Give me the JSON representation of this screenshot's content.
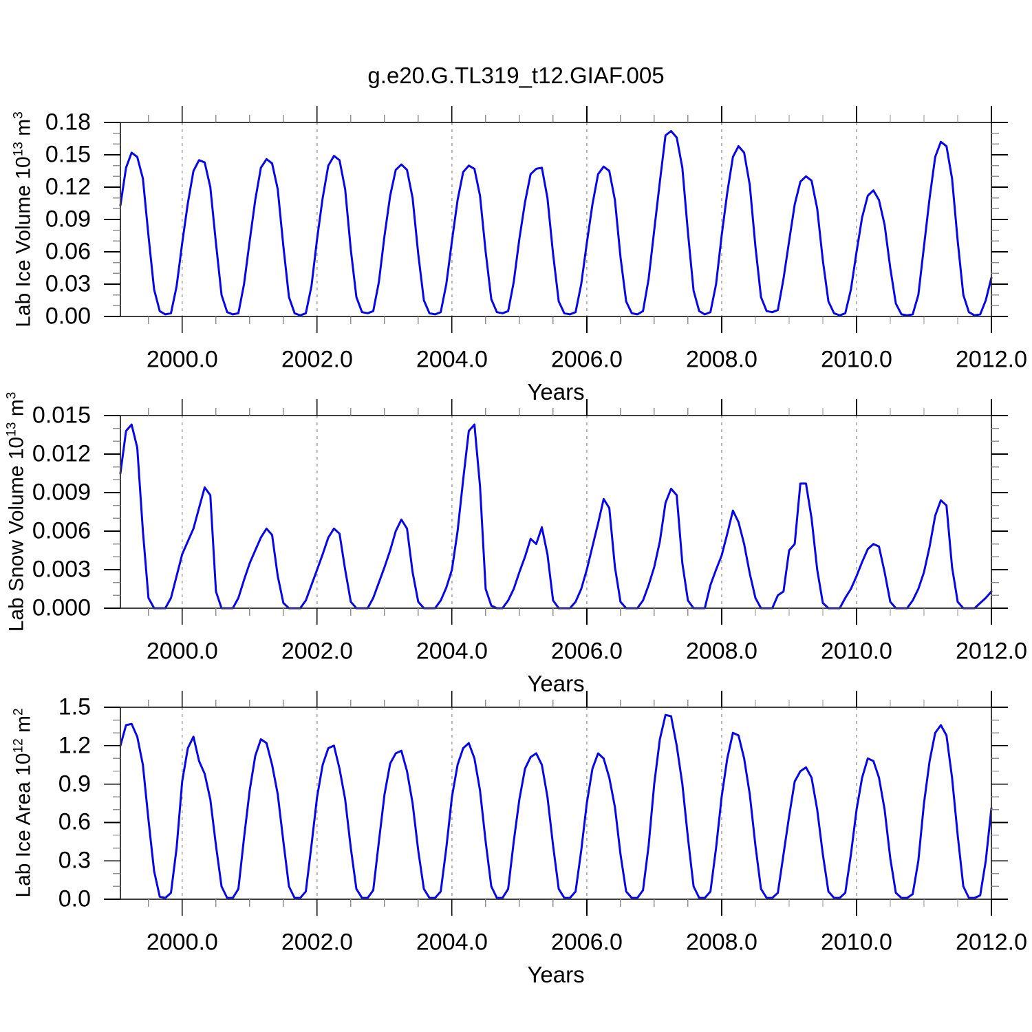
{
  "figure": {
    "title": "g.e20.G.TL319_t12.GIAF.005",
    "background": "#ffffff"
  },
  "style": {
    "line_color": "#0606ee",
    "frame_color": "#404040",
    "major_tick_color": "#000000",
    "minor_tick_color": "#909090",
    "grid_color": "#888888",
    "text_color": "#000000"
  },
  "x_axis": {
    "label": "Years",
    "min": 1999.0833,
    "max": 2012.0,
    "major_tick_values": [
      2000.0,
      2002.0,
      2004.0,
      2006.0,
      2008.0,
      2010.0,
      2012.0
    ],
    "major_tick_labels": [
      "2000.0",
      "2002.0",
      "2004.0",
      "2006.0",
      "2008.0",
      "2010.0",
      "2012.0"
    ],
    "minor_tick_step": 0.5,
    "grid_values": [
      2000.0,
      2002.0,
      2004.0,
      2006.0,
      2008.0,
      2010.0
    ]
  },
  "chart_data": [
    {
      "type": "line",
      "name": "Lab Ice Volume",
      "ylabel": "Lab Ice Volume 10¹³ m³",
      "ylabel_parts": [
        [
          "Lab Ice Volume 10",
          false
        ],
        [
          "13",
          true
        ],
        [
          " m",
          false
        ],
        [
          "3",
          true
        ]
      ],
      "xlabel": "Years",
      "xlim": [
        1999.0833,
        2012.0
      ],
      "ylim": [
        0.0,
        0.18
      ],
      "ytick_values": [
        0.0,
        0.03,
        0.06,
        0.09,
        0.12,
        0.15,
        0.18
      ],
      "ytick_labels": [
        "0.00",
        "0.03",
        "0.06",
        "0.09",
        "0.12",
        "0.15",
        "0.18"
      ],
      "y_minor_step": 0.01,
      "x_start": 1999.0833,
      "x_step": 0.0833333,
      "values": [
        0.103,
        0.138,
        0.152,
        0.148,
        0.128,
        0.075,
        0.025,
        0.005,
        0.002,
        0.003,
        0.028,
        0.068,
        0.105,
        0.135,
        0.145,
        0.143,
        0.12,
        0.068,
        0.02,
        0.004,
        0.002,
        0.003,
        0.03,
        0.07,
        0.108,
        0.138,
        0.146,
        0.142,
        0.118,
        0.065,
        0.018,
        0.003,
        0.001,
        0.003,
        0.028,
        0.072,
        0.11,
        0.14,
        0.149,
        0.145,
        0.118,
        0.062,
        0.018,
        0.004,
        0.003,
        0.005,
        0.032,
        0.075,
        0.112,
        0.136,
        0.141,
        0.136,
        0.11,
        0.058,
        0.015,
        0.003,
        0.002,
        0.004,
        0.03,
        0.07,
        0.108,
        0.134,
        0.14,
        0.137,
        0.112,
        0.06,
        0.016,
        0.004,
        0.003,
        0.005,
        0.032,
        0.072,
        0.106,
        0.132,
        0.137,
        0.138,
        0.11,
        0.058,
        0.014,
        0.003,
        0.002,
        0.004,
        0.03,
        0.068,
        0.104,
        0.132,
        0.139,
        0.135,
        0.108,
        0.055,
        0.014,
        0.003,
        0.002,
        0.005,
        0.035,
        0.08,
        0.125,
        0.168,
        0.172,
        0.166,
        0.138,
        0.078,
        0.024,
        0.005,
        0.002,
        0.004,
        0.03,
        0.075,
        0.115,
        0.148,
        0.158,
        0.152,
        0.122,
        0.065,
        0.018,
        0.005,
        0.004,
        0.006,
        0.035,
        0.07,
        0.104,
        0.125,
        0.13,
        0.126,
        0.1,
        0.052,
        0.014,
        0.003,
        0.001,
        0.003,
        0.025,
        0.06,
        0.092,
        0.112,
        0.117,
        0.108,
        0.085,
        0.045,
        0.012,
        0.002,
        0.001,
        0.002,
        0.02,
        0.065,
        0.11,
        0.148,
        0.162,
        0.158,
        0.128,
        0.07,
        0.02,
        0.004,
        0.001,
        0.002,
        0.015,
        0.036
      ]
    },
    {
      "type": "line",
      "name": "Lab Snow Volume",
      "ylabel": "Lab Snow Volume 10¹³ m³",
      "ylabel_parts": [
        [
          "Lab Snow Volume 10",
          false
        ],
        [
          "13",
          true
        ],
        [
          " m",
          false
        ],
        [
          "3",
          true
        ]
      ],
      "xlabel": "Years",
      "xlim": [
        1999.0833,
        2012.0
      ],
      "ylim": [
        0.0,
        0.015
      ],
      "ytick_values": [
        0.0,
        0.003,
        0.006,
        0.009,
        0.012,
        0.015
      ],
      "ytick_labels": [
        "0.000",
        "0.003",
        "0.006",
        "0.009",
        "0.012",
        "0.015"
      ],
      "y_minor_step": 0.001,
      "x_start": 1999.0833,
      "x_step": 0.0833333,
      "values": [
        0.0105,
        0.0138,
        0.0143,
        0.0125,
        0.006,
        0.0008,
        0.0,
        0.0,
        0.0,
        0.0008,
        0.0025,
        0.0042,
        0.0052,
        0.0062,
        0.0078,
        0.0094,
        0.0088,
        0.0013,
        0.0,
        0.0,
        0.0,
        0.0008,
        0.0022,
        0.0035,
        0.0045,
        0.0055,
        0.0062,
        0.0057,
        0.0025,
        0.0004,
        0.0,
        0.0,
        0.0,
        0.0006,
        0.0018,
        0.003,
        0.0042,
        0.0055,
        0.0062,
        0.0058,
        0.003,
        0.0005,
        0.0,
        0.0,
        0.0,
        0.0008,
        0.002,
        0.0032,
        0.0045,
        0.006,
        0.0069,
        0.0062,
        0.0028,
        0.0005,
        0.0,
        0.0,
        0.0,
        0.0006,
        0.0016,
        0.003,
        0.006,
        0.01,
        0.0138,
        0.0143,
        0.0095,
        0.0015,
        0.0002,
        0.0,
        0.0,
        0.0006,
        0.0015,
        0.0028,
        0.004,
        0.0054,
        0.005,
        0.0063,
        0.0042,
        0.0006,
        0.0,
        0.0,
        0.0,
        0.0005,
        0.0015,
        0.003,
        0.0048,
        0.0066,
        0.0085,
        0.0078,
        0.0032,
        0.0005,
        0.0,
        0.0,
        0.0,
        0.0006,
        0.0018,
        0.0032,
        0.0052,
        0.0082,
        0.0093,
        0.0088,
        0.0035,
        0.0006,
        0.0,
        0.0,
        0.0,
        0.0018,
        0.003,
        0.0041,
        0.0058,
        0.0076,
        0.0067,
        0.005,
        0.0027,
        0.0008,
        0.0,
        0.0,
        0.0,
        0.001,
        0.0013,
        0.0045,
        0.005,
        0.0097,
        0.0097,
        0.007,
        0.003,
        0.0004,
        0.0,
        0.0,
        0.0,
        0.0008,
        0.0015,
        0.0025,
        0.0036,
        0.0046,
        0.005,
        0.0048,
        0.0028,
        0.0005,
        0.0,
        0.0,
        0.0,
        0.0006,
        0.0015,
        0.0028,
        0.0048,
        0.0072,
        0.0084,
        0.008,
        0.0032,
        0.0005,
        0.0,
        0.0,
        0.0,
        0.0004,
        0.0008,
        0.0013
      ]
    },
    {
      "type": "line",
      "name": "Lab Ice Area",
      "ylabel": "Lab Ice Area 10¹² m²",
      "ylabel_parts": [
        [
          "Lab Ice Area 10",
          false
        ],
        [
          "12",
          true
        ],
        [
          " m",
          false
        ],
        [
          "2",
          true
        ]
      ],
      "xlabel": "Years",
      "xlim": [
        1999.0833,
        2012.0
      ],
      "ylim": [
        0.0,
        1.5
      ],
      "ytick_values": [
        0.0,
        0.3,
        0.6,
        0.9,
        1.2,
        1.5
      ],
      "ytick_labels": [
        "0.0",
        "0.3",
        "0.6",
        "0.9",
        "1.2",
        "1.5"
      ],
      "y_minor_step": 0.1,
      "x_start": 1999.0833,
      "x_step": 0.0833333,
      "values": [
        1.2,
        1.36,
        1.37,
        1.27,
        1.05,
        0.62,
        0.22,
        0.02,
        0.01,
        0.05,
        0.4,
        0.92,
        1.18,
        1.27,
        1.08,
        0.98,
        0.78,
        0.42,
        0.1,
        0.01,
        0.01,
        0.08,
        0.48,
        0.85,
        1.12,
        1.25,
        1.22,
        1.05,
        0.82,
        0.45,
        0.1,
        0.01,
        0.01,
        0.06,
        0.42,
        0.8,
        1.05,
        1.18,
        1.2,
        1.02,
        0.78,
        0.4,
        0.08,
        0.01,
        0.01,
        0.07,
        0.45,
        0.82,
        1.06,
        1.14,
        1.16,
        1.0,
        0.75,
        0.38,
        0.08,
        0.01,
        0.01,
        0.06,
        0.4,
        0.8,
        1.05,
        1.18,
        1.22,
        1.1,
        0.85,
        0.45,
        0.1,
        0.01,
        0.01,
        0.08,
        0.45,
        0.78,
        1.02,
        1.11,
        1.14,
        1.05,
        0.8,
        0.42,
        0.08,
        0.01,
        0.01,
        0.06,
        0.38,
        0.75,
        1.02,
        1.14,
        1.1,
        0.95,
        0.72,
        0.35,
        0.06,
        0.01,
        0.01,
        0.07,
        0.42,
        0.9,
        1.25,
        1.44,
        1.43,
        1.2,
        0.9,
        0.48,
        0.1,
        0.01,
        0.01,
        0.06,
        0.4,
        0.8,
        1.1,
        1.3,
        1.28,
        1.1,
        0.82,
        0.42,
        0.08,
        0.01,
        0.01,
        0.05,
        0.35,
        0.65,
        0.92,
        1.0,
        1.03,
        0.95,
        0.7,
        0.35,
        0.06,
        0.01,
        0.01,
        0.05,
        0.35,
        0.7,
        0.95,
        1.1,
        1.08,
        0.95,
        0.7,
        0.32,
        0.05,
        0.01,
        0.01,
        0.04,
        0.3,
        0.75,
        1.08,
        1.3,
        1.36,
        1.28,
        0.95,
        0.5,
        0.1,
        0.01,
        0.01,
        0.03,
        0.3,
        0.71
      ]
    }
  ]
}
